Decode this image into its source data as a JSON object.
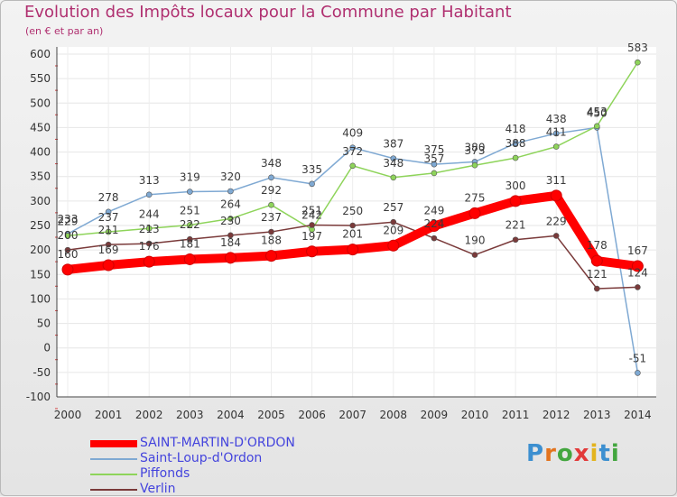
{
  "header": {
    "title": "Evolution des Impôts locaux pour la Commune par Habitant",
    "subtitle": "(en € et par an)"
  },
  "logo": {
    "text": "Proxiti"
  },
  "chart_data": {
    "type": "line",
    "title": "Evolution des Impôts locaux pour la Commune par Habitant",
    "subtitle": "(en € et par an)",
    "xlabel": "",
    "ylabel": "",
    "x": [
      "2000",
      "2001",
      "2002",
      "2003",
      "2004",
      "2005",
      "2006",
      "2007",
      "2008",
      "2009",
      "2010",
      "2011",
      "2012",
      "2013",
      "2014"
    ],
    "ylim": [
      -100,
      600
    ],
    "yticks": [
      "600",
      "550",
      "500",
      "450",
      "400",
      "350",
      "300",
      "250",
      "200",
      "150",
      "100",
      "50",
      "0",
      "-50",
      "-100"
    ],
    "grid": true,
    "legend": "bottom-left",
    "series": [
      {
        "name": "SAINT-MARTIN-D'ORDON",
        "color": "#ff0000",
        "values": [
          160,
          169,
          176,
          181,
          184,
          188,
          197,
          201,
          209,
          249,
          275,
          300,
          311,
          178,
          167
        ]
      },
      {
        "name": "Saint-Loup-d'Ordon",
        "color": "#7fa9d3",
        "values": [
          233,
          278,
          313,
          319,
          320,
          348,
          335,
          409,
          387,
          375,
          380,
          418,
          438,
          450,
          -51
        ]
      },
      {
        "name": "Piffonds",
        "color": "#8ed45a",
        "values": [
          229,
          237,
          244,
          251,
          264,
          292,
          242,
          372,
          348,
          357,
          373,
          388,
          411,
          453,
          583
        ]
      },
      {
        "name": "Verlin",
        "color": "#7a3a3a",
        "values": [
          200,
          211,
          213,
          222,
          230,
          237,
          251,
          250,
          257,
          224,
          190,
          221,
          229,
          121,
          124
        ]
      }
    ],
    "data_labels": [
      [
        "160",
        "169",
        "176",
        "181",
        "184",
        "188",
        "197",
        "201",
        "209",
        "249",
        "275",
        "300",
        "311",
        "178",
        "167"
      ],
      [
        "233",
        "278",
        "313",
        "319",
        "320",
        "348",
        "335",
        "409",
        "387",
        "375",
        "380",
        "418",
        "438",
        "450",
        "-51"
      ],
      [
        "229",
        "237",
        "244",
        "251",
        "264",
        "292",
        "242",
        "372",
        "348",
        "357",
        "373",
        "388",
        "411",
        "453",
        "583"
      ],
      [
        "200",
        "211",
        "213",
        "222",
        "230",
        "237",
        "251",
        "250",
        "257",
        "224",
        "190",
        "221",
        "229",
        "121",
        "124"
      ]
    ]
  }
}
